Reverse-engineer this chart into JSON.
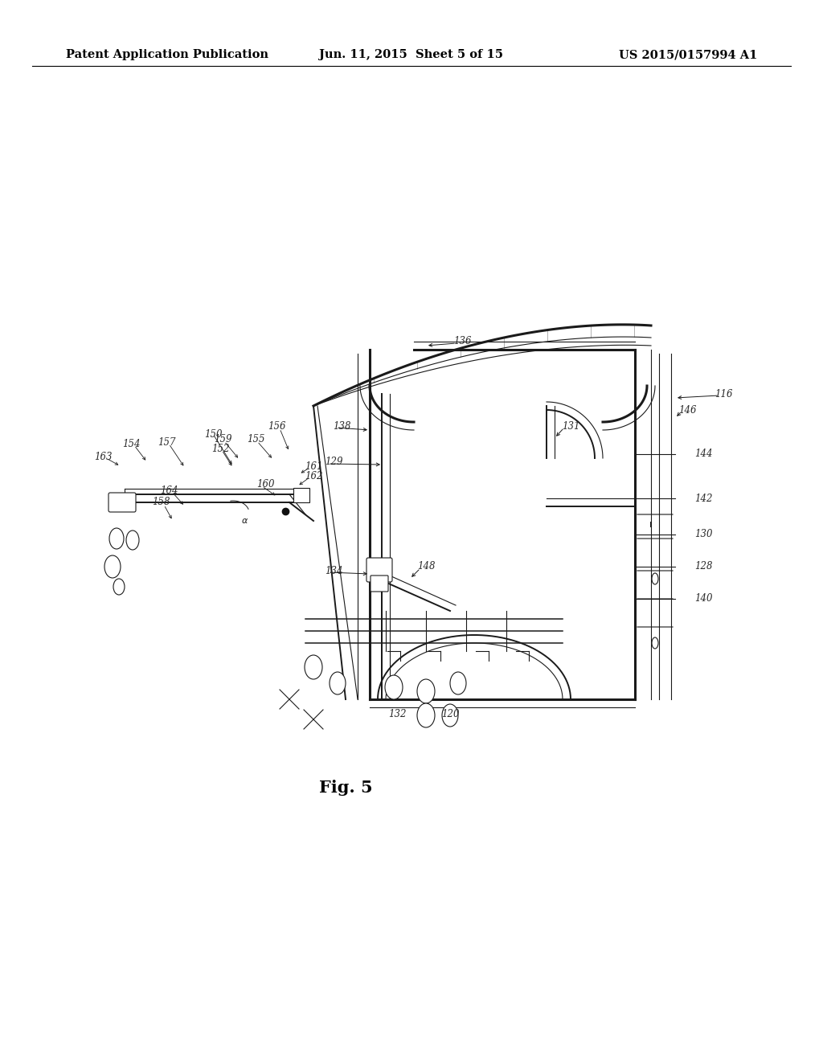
{
  "header_left": "Patent Application Publication",
  "header_center": "Jun. 11, 2015  Sheet 5 of 15",
  "header_right": "US 2015/0157994 A1",
  "fig_label": "Fig. 5",
  "background_color": "#ffffff",
  "line_color": "#1a1a1a",
  "label_color": "#2a2a2a",
  "header_fontsize": 10.5,
  "fig_label_fontsize": 15,
  "label_fontsize": 8.5
}
